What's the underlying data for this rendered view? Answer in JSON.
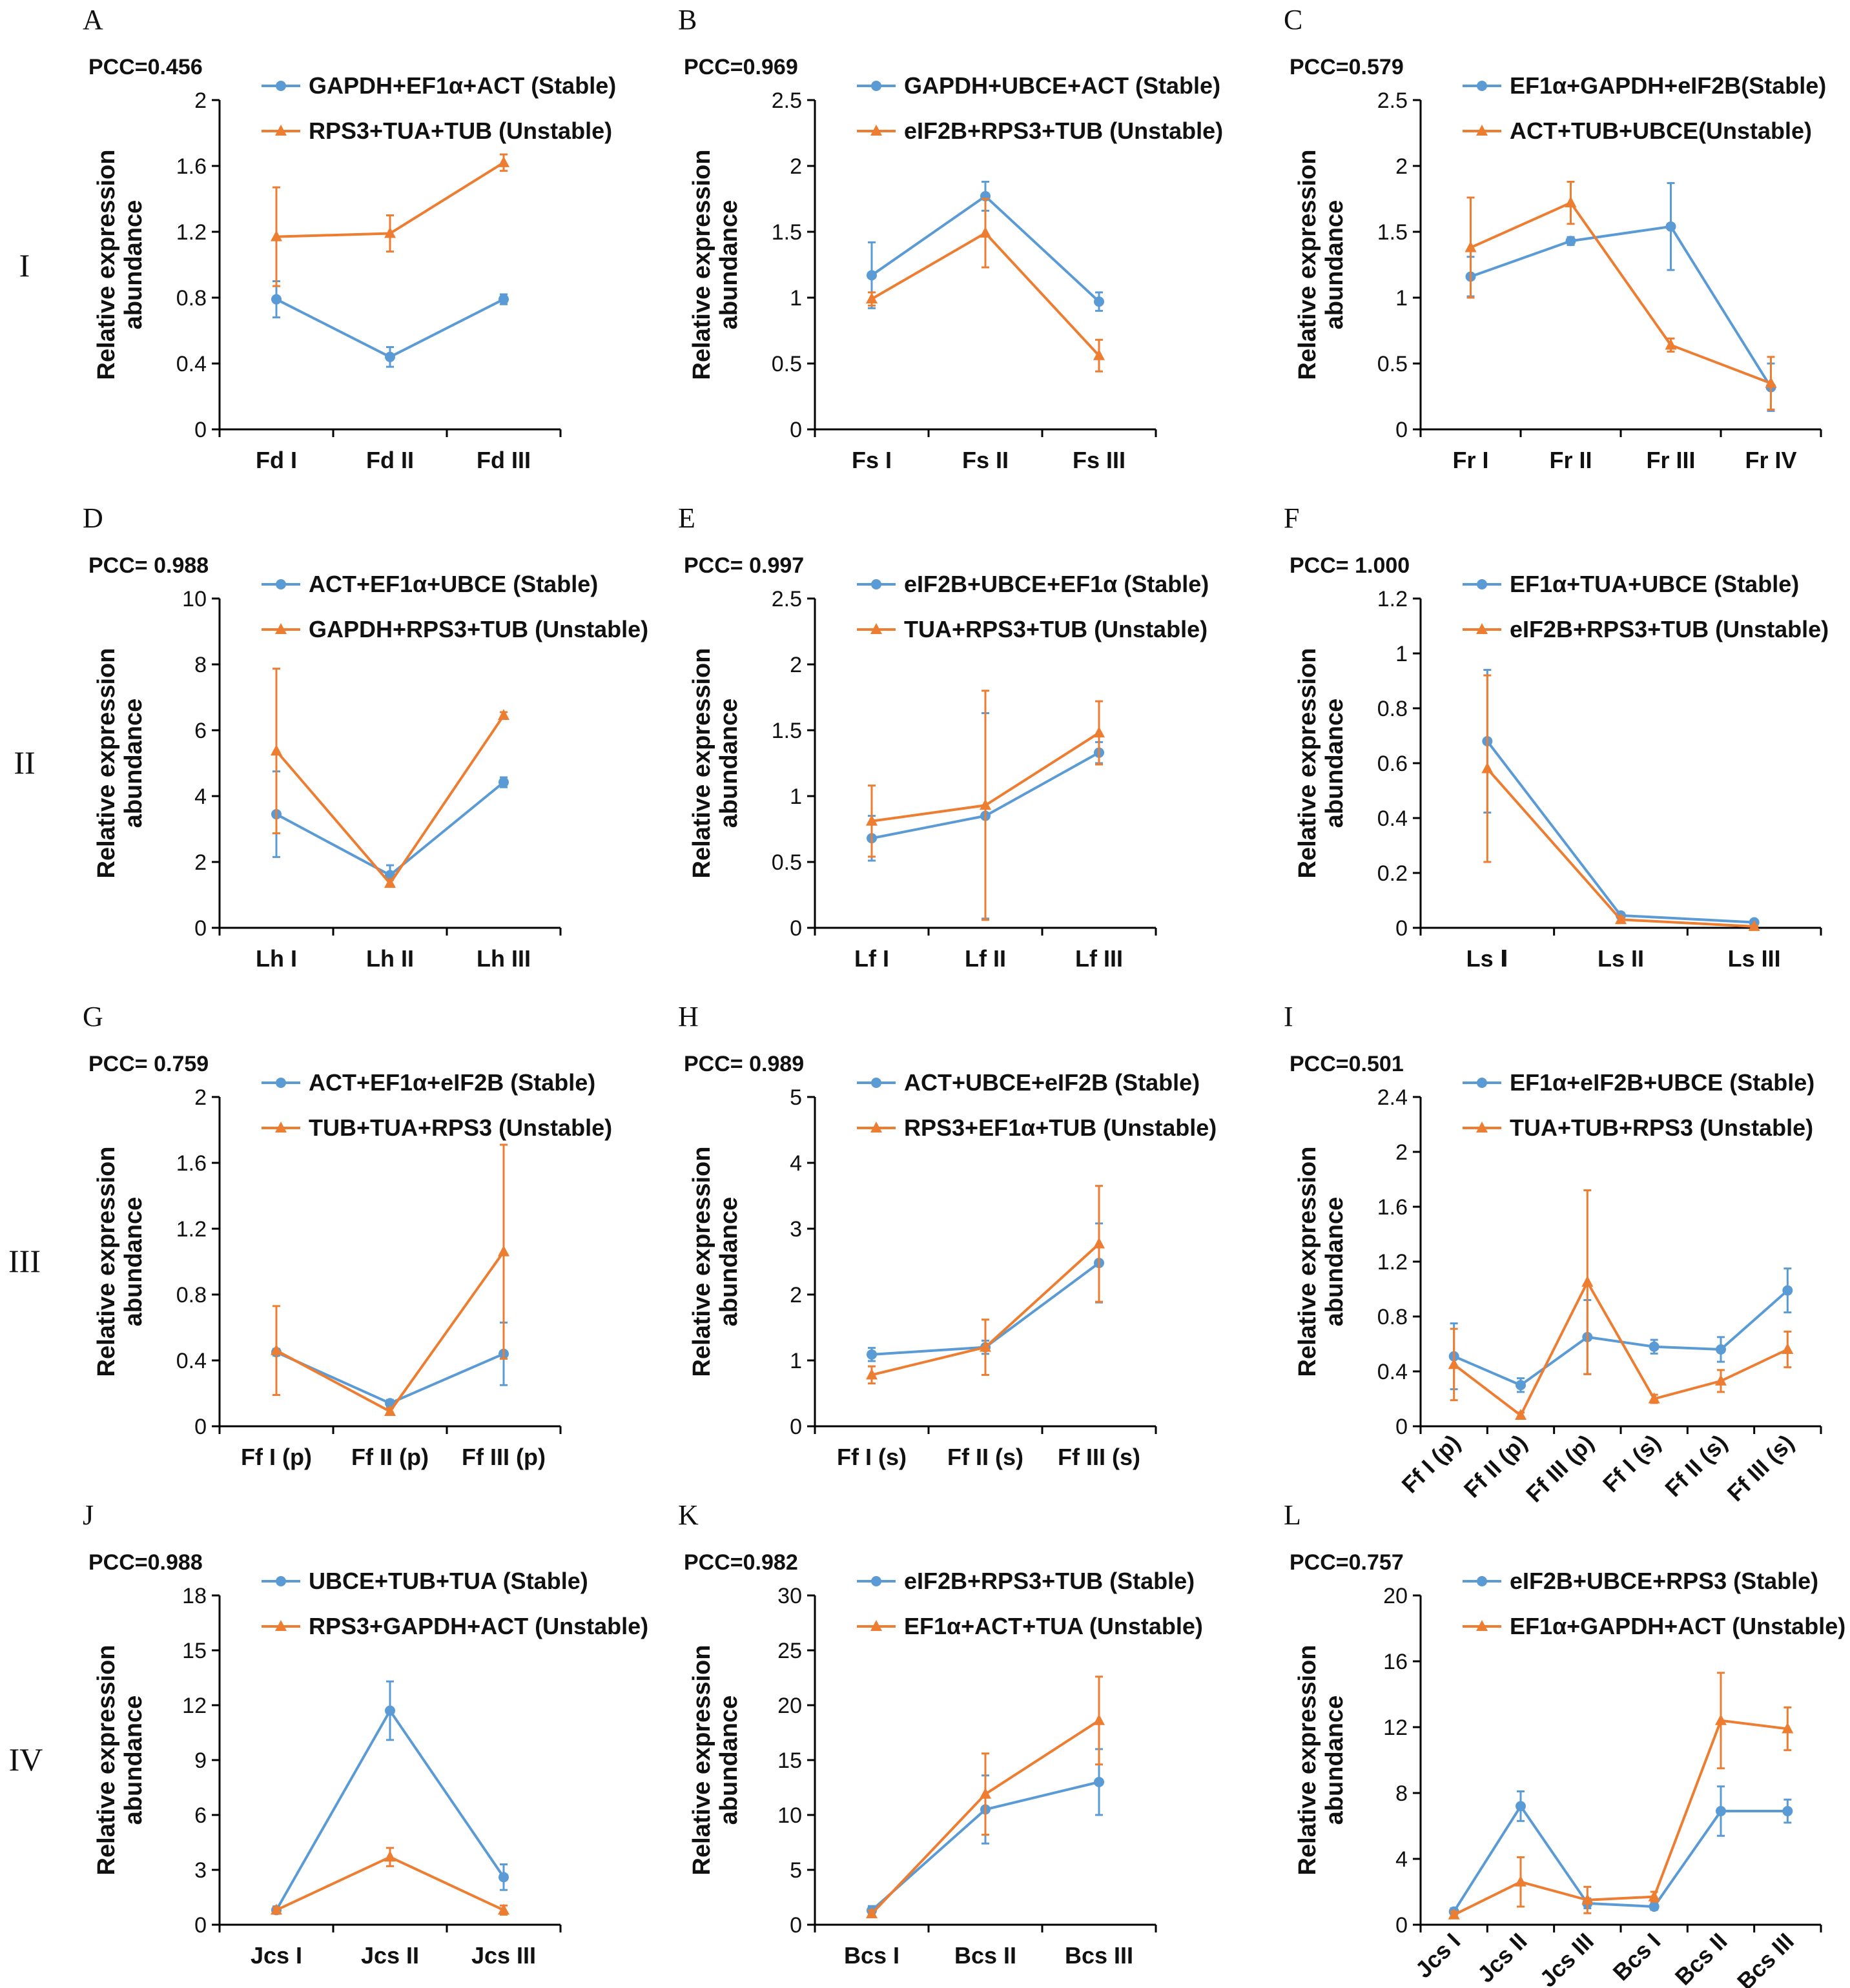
{
  "figure": {
    "row_labels": [
      "I",
      "II",
      "III",
      "IV"
    ],
    "colors": {
      "stable": "#5B9BD5",
      "unstable": "#ED7D31",
      "axis": "#000000"
    }
  },
  "chart_data": [
    {
      "id": "A",
      "type": "line",
      "pcc": "PCC=0.456",
      "ylabel": [
        "Relative expression",
        "abundance"
      ],
      "ylim": [
        0,
        2
      ],
      "yticks": [
        "0",
        "0.4",
        "0.8",
        "1.2",
        "1.6",
        "2"
      ],
      "categories": [
        "Fd I",
        "Fd II",
        "Fd III"
      ],
      "xtick_rotated": false,
      "series": [
        {
          "name": "GAPDH+EF1α+ACT (Stable)",
          "kind": "stable",
          "values": [
            0.79,
            0.44,
            0.79
          ],
          "errors": [
            0.11,
            0.06,
            0.03
          ]
        },
        {
          "name": "RPS3+TUA+TUB (Unstable)",
          "kind": "unstable",
          "values": [
            1.17,
            1.19,
            1.62
          ],
          "errors": [
            0.3,
            0.11,
            0.05
          ]
        }
      ]
    },
    {
      "id": "B",
      "type": "line",
      "pcc": "PCC=0.969",
      "ylabel": [
        "Relative expression",
        "abundance"
      ],
      "ylim": [
        0,
        2.5
      ],
      "yticks": [
        "0",
        "0.5",
        "1",
        "1.5",
        "2",
        "2.5"
      ],
      "categories": [
        "Fs I",
        "Fs II",
        "Fs III"
      ],
      "xtick_rotated": false,
      "series": [
        {
          "name": "GAPDH+UBCE+ACT (Stable)",
          "kind": "stable",
          "values": [
            1.17,
            1.77,
            0.97
          ],
          "errors": [
            0.25,
            0.11,
            0.07
          ]
        },
        {
          "name": "eIF2B+RPS3+TUB (Unstable)",
          "kind": "unstable",
          "values": [
            0.99,
            1.49,
            0.56
          ],
          "errors": [
            0.05,
            0.26,
            0.12
          ]
        }
      ]
    },
    {
      "id": "C",
      "type": "line",
      "pcc": "PCC=0.579",
      "ylabel": [
        "Relative expression",
        "abundance"
      ],
      "ylim": [
        0,
        2.5
      ],
      "yticks": [
        "0",
        "0.5",
        "1",
        "1.5",
        "2",
        "2.5"
      ],
      "categories": [
        "Fr I",
        "Fr II",
        "Fr III",
        "Fr IV"
      ],
      "xtick_rotated": false,
      "series": [
        {
          "name": "EF1α+GAPDH+eIF2B(Stable)",
          "kind": "stable",
          "values": [
            1.16,
            1.43,
            1.54,
            0.32
          ],
          "errors": [
            0.15,
            0.03,
            0.33,
            0.18
          ]
        },
        {
          "name": "ACT+TUB+UBCE(Unstable)",
          "kind": "unstable",
          "values": [
            1.38,
            1.72,
            0.64,
            0.35
          ],
          "errors": [
            0.38,
            0.16,
            0.05,
            0.2
          ]
        }
      ]
    },
    {
      "id": "D",
      "type": "line",
      "pcc": "PCC= 0.988",
      "ylabel": [
        "Relative expression",
        "abundance"
      ],
      "ylim": [
        0,
        10
      ],
      "yticks": [
        "0",
        "2",
        "4",
        "6",
        "8",
        "10"
      ],
      "categories": [
        "Lh I",
        "Lh II",
        "Lh III"
      ],
      "xtick_rotated": false,
      "series": [
        {
          "name": "ACT+EF1α+UBCE (Stable)",
          "kind": "stable",
          "values": [
            3.45,
            1.6,
            4.42
          ],
          "errors": [
            1.3,
            0.3,
            0.15
          ]
        },
        {
          "name": "GAPDH+RPS3+TUB (Unstable)",
          "kind": "unstable",
          "values": [
            5.37,
            1.35,
            6.45
          ],
          "errors": [
            2.5,
            0.1,
            0.1
          ]
        }
      ]
    },
    {
      "id": "E",
      "type": "line",
      "pcc": "PCC= 0.997",
      "ylabel": [
        "Relative expression",
        "abundance"
      ],
      "ylim": [
        0,
        2.5
      ],
      "yticks": [
        "0",
        "0.5",
        "1",
        "1.5",
        "2",
        "2.5"
      ],
      "categories": [
        "Lf I",
        "Lf II",
        "Lf III"
      ],
      "xtick_rotated": false,
      "series": [
        {
          "name": "eIF2B+UBCE+EF1α (Stable)",
          "kind": "stable",
          "values": [
            0.68,
            0.85,
            1.33
          ],
          "errors": [
            0.17,
            0.78,
            0.08
          ]
        },
        {
          "name": "TUA+RPS3+TUB (Unstable)",
          "kind": "unstable",
          "values": [
            0.81,
            0.93,
            1.48
          ],
          "errors": [
            0.27,
            0.87,
            0.24
          ]
        }
      ]
    },
    {
      "id": "F",
      "type": "line",
      "pcc": "PCC= 1.000",
      "ylabel": [
        "Relative expression",
        "abundance"
      ],
      "ylim": [
        0,
        1.2
      ],
      "yticks": [
        "0",
        "0.2",
        "0.4",
        "0.6",
        "0.8",
        "1",
        "1.2"
      ],
      "categories": [
        "Ls Ⅰ",
        "Ls II",
        "Ls III"
      ],
      "xtick_rotated": false,
      "series": [
        {
          "name": "EF1α+TUA+UBCE (Stable)",
          "kind": "stable",
          "values": [
            0.68,
            0.045,
            0.02
          ],
          "errors": [
            0.26,
            0.01,
            0.005
          ]
        },
        {
          "name": "eIF2B+RPS3+TUB (Unstable)",
          "kind": "unstable",
          "values": [
            0.58,
            0.03,
            0.005
          ],
          "errors": [
            0.34,
            0.01,
            0.003
          ]
        }
      ]
    },
    {
      "id": "G",
      "type": "line",
      "pcc": "PCC= 0.759",
      "ylabel": [
        "Relative expression",
        "abundance"
      ],
      "ylim": [
        0,
        2
      ],
      "yticks": [
        "0",
        "0.4",
        "0.8",
        "1.2",
        "1.6",
        "2"
      ],
      "categories": [
        "Ff I (p)",
        "Ff II (p)",
        "Ff III (p)"
      ],
      "xtick_rotated": false,
      "series": [
        {
          "name": "ACT+EF1α+eIF2B (Stable)",
          "kind": "stable",
          "values": [
            0.45,
            0.14,
            0.44
          ],
          "errors": [
            0.02,
            0.02,
            0.19
          ]
        },
        {
          "name": "TUB+TUA+RPS3 (Unstable)",
          "kind": "unstable",
          "values": [
            0.46,
            0.09,
            1.06
          ],
          "errors": [
            0.27,
            0.02,
            0.65
          ]
        }
      ]
    },
    {
      "id": "H",
      "type": "line",
      "pcc": "PCC= 0.989",
      "ylabel": [
        "Relative expression",
        "abundance"
      ],
      "ylim": [
        0,
        5
      ],
      "yticks": [
        "0",
        "1",
        "2",
        "3",
        "4",
        "5"
      ],
      "categories": [
        "Ff I (s)",
        "Ff II (s)",
        "Ff III (s)"
      ],
      "xtick_rotated": false,
      "series": [
        {
          "name": "ACT+UBCE+eIF2B (Stable)",
          "kind": "stable",
          "values": [
            1.09,
            1.2,
            2.48
          ],
          "errors": [
            0.1,
            0.1,
            0.6
          ]
        },
        {
          "name": "RPS3+EF1α+TUB (Unstable)",
          "kind": "unstable",
          "values": [
            0.78,
            1.2,
            2.77
          ],
          "errors": [
            0.13,
            0.42,
            0.88
          ]
        }
      ]
    },
    {
      "id": "I",
      "type": "line",
      "pcc": "PCC=0.501",
      "ylabel": [
        "Relative expression",
        "abundance"
      ],
      "ylim": [
        0,
        2.4
      ],
      "yticks": [
        "0",
        "0.4",
        "0.8",
        "1.2",
        "1.6",
        "2",
        "2.4"
      ],
      "categories": [
        "Ff I (p)",
        "Ff II (p)",
        "Ff III (p)",
        "Ff I (s)",
        "Ff II (s)",
        "Ff III (s)"
      ],
      "xtick_rotated": true,
      "series": [
        {
          "name": "EF1α+eIF2B+UBCE (Stable)",
          "kind": "stable",
          "values": [
            0.51,
            0.3,
            0.65,
            0.58,
            0.56,
            0.99
          ],
          "errors": [
            0.24,
            0.05,
            0.27,
            0.05,
            0.09,
            0.16
          ]
        },
        {
          "name": "TUA+TUB+RPS3 (Unstable)",
          "kind": "unstable",
          "values": [
            0.45,
            0.08,
            1.05,
            0.2,
            0.33,
            0.56
          ],
          "errors": [
            0.26,
            0.02,
            0.67,
            0.03,
            0.08,
            0.13
          ]
        }
      ]
    },
    {
      "id": "J",
      "type": "line",
      "pcc": "PCC=0.988",
      "ylabel": [
        "Relative expression",
        "abundance"
      ],
      "ylim": [
        0,
        18
      ],
      "yticks": [
        "0",
        "3",
        "6",
        "9",
        "12",
        "15",
        "18"
      ],
      "categories": [
        "Jcs I",
        "Jcs II",
        "Jcs III"
      ],
      "xtick_rotated": false,
      "series": [
        {
          "name": "UBCE+TUB+TUA (Stable)",
          "kind": "stable",
          "values": [
            0.8,
            11.7,
            2.6
          ],
          "errors": [
            0.2,
            1.6,
            0.7
          ]
        },
        {
          "name": "RPS3+GAPDH+ACT (Unstable)",
          "kind": "unstable",
          "values": [
            0.8,
            3.7,
            0.8
          ],
          "errors": [
            0.15,
            0.5,
            0.25
          ]
        }
      ]
    },
    {
      "id": "K",
      "type": "line",
      "pcc": "PCC=0.982",
      "ylabel": [
        "Relative expression",
        "abundance"
      ],
      "ylim": [
        0,
        30
      ],
      "yticks": [
        "0",
        "5",
        "10",
        "15",
        "20",
        "25",
        "30"
      ],
      "categories": [
        "Bcs I",
        "Bcs II",
        "Bcs III"
      ],
      "xtick_rotated": false,
      "series": [
        {
          "name": "eIF2B+RPS3+TUB (Stable)",
          "kind": "stable",
          "values": [
            1.3,
            10.5,
            13.0
          ],
          "errors": [
            0.4,
            3.1,
            3.0
          ]
        },
        {
          "name": "EF1α+ACT+TUA (Unstable)",
          "kind": "unstable",
          "values": [
            1.0,
            11.9,
            18.6
          ],
          "errors": [
            0.3,
            3.7,
            4.0
          ]
        }
      ]
    },
    {
      "id": "L",
      "type": "line",
      "pcc": "PCC=0.757",
      "ylabel": [
        "Relative expression",
        "abundance"
      ],
      "ylim": [
        0,
        20
      ],
      "yticks": [
        "0",
        "4",
        "8",
        "12",
        "16",
        "20"
      ],
      "categories": [
        "Jcs I",
        "Jcs II",
        "Jcs III",
        "Bcs I",
        "Bcs II",
        "Bcs III"
      ],
      "xtick_rotated": true,
      "series": [
        {
          "name": "eIF2B+UBCE+RPS3 (Stable)",
          "kind": "stable",
          "values": [
            0.8,
            7.2,
            1.3,
            1.1,
            6.9,
            6.9
          ],
          "errors": [
            0.2,
            0.9,
            0.3,
            0.2,
            1.5,
            0.7
          ]
        },
        {
          "name": "EF1α+GAPDH+ACT (Unstable)",
          "kind": "unstable",
          "values": [
            0.6,
            2.6,
            1.5,
            1.7,
            12.4,
            11.9
          ],
          "errors": [
            0.2,
            1.5,
            0.8,
            0.3,
            2.9,
            1.3
          ]
        }
      ]
    }
  ]
}
